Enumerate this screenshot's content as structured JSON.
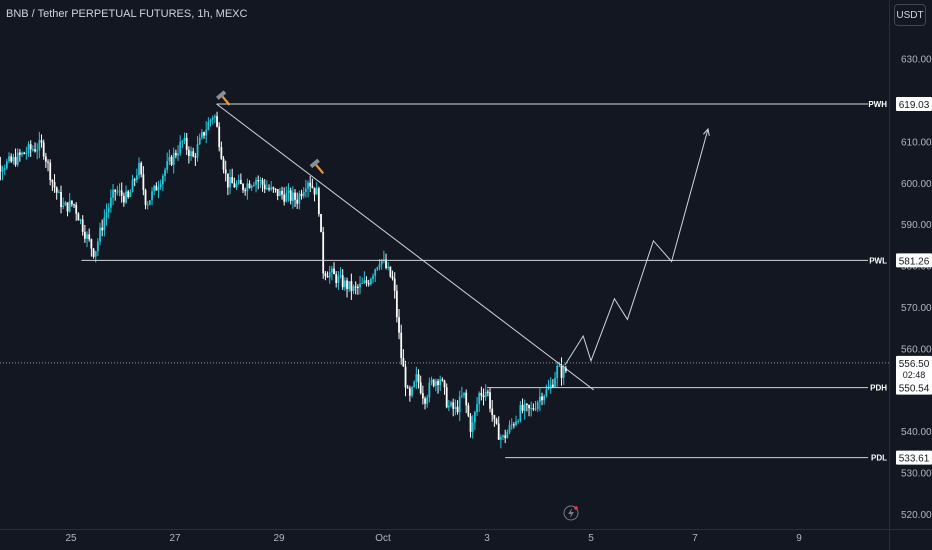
{
  "header": {
    "title": "BNB / Tether PERPETUAL FUTURES, 1h, MEXC",
    "currency_button": "USDT"
  },
  "colors": {
    "background": "#131722",
    "up": "#26c6da",
    "down": "#ffffff",
    "line": "#d1d4dc",
    "text": "#b2b5be",
    "hammer_head": "#8a8f9a",
    "hammer_handle": "#e69a3c"
  },
  "chart_data": {
    "type": "candlestick",
    "symbol": "BNB / Tether PERPETUAL FUTURES",
    "interval": "1h",
    "exchange": "MEXC",
    "ylim": [
      516,
      638
    ],
    "y_ticks": [
      520,
      530,
      540,
      550,
      560,
      570,
      580,
      590,
      600,
      610,
      620,
      630
    ],
    "y_tick_labels": [
      "520.00",
      "530.00",
      "540.00",
      "550.00",
      "560.00",
      "570.00",
      "580.00",
      "590.00",
      "600.00",
      "610.00",
      "620.00",
      "630.00"
    ],
    "x_day_range": [
      23.35,
      32.4
    ],
    "x_ticks": [
      {
        "day": 25,
        "label": "25"
      },
      {
        "day": 27,
        "label": "27"
      },
      {
        "day": 29,
        "label": "29"
      },
      {
        "day": 31,
        "label": "Oct"
      },
      {
        "day": 33,
        "label": "3"
      },
      {
        "day": 35,
        "label": "5"
      },
      {
        "day": 37,
        "label": "7"
      },
      {
        "day": 39,
        "label": "9"
      }
    ],
    "price_path": [
      [
        23.35,
        612
      ],
      [
        23.6,
        604
      ],
      [
        23.85,
        605
      ],
      [
        24.2,
        608
      ],
      [
        24.45,
        609
      ],
      [
        24.65,
        600
      ],
      [
        24.85,
        594
      ],
      [
        25.05,
        595
      ],
      [
        25.3,
        587
      ],
      [
        25.45,
        583
      ],
      [
        25.65,
        592
      ],
      [
        25.85,
        598
      ],
      [
        26.1,
        596
      ],
      [
        26.3,
        604
      ],
      [
        26.45,
        595
      ],
      [
        26.6,
        598
      ],
      [
        26.8,
        603
      ],
      [
        27.0,
        607
      ],
      [
        27.15,
        610
      ],
      [
        27.35,
        606
      ],
      [
        27.55,
        612
      ],
      [
        27.75,
        617
      ],
      [
        28.0,
        600
      ],
      [
        28.3,
        599
      ],
      [
        28.55,
        601
      ],
      [
        28.85,
        598
      ],
      [
        29.1,
        597
      ],
      [
        29.35,
        596
      ],
      [
        29.55,
        601
      ],
      [
        29.75,
        597
      ],
      [
        29.85,
        579
      ],
      [
        30.0,
        578
      ],
      [
        30.2,
        576
      ],
      [
        30.45,
        574
      ],
      [
        30.7,
        576
      ],
      [
        30.95,
        582
      ],
      [
        31.2,
        576
      ],
      [
        31.35,
        558
      ],
      [
        31.5,
        547
      ],
      [
        31.65,
        553
      ],
      [
        31.8,
        548
      ],
      [
        31.95,
        552
      ],
      [
        32.1,
        553
      ],
      [
        32.25,
        546
      ],
      [
        32.4,
        545
      ],
      [
        32.55,
        549
      ],
      [
        32.7,
        540
      ],
      [
        32.85,
        549
      ],
      [
        33.0,
        550
      ],
      [
        33.15,
        541
      ],
      [
        33.3,
        538
      ],
      [
        33.45,
        541
      ],
      [
        33.65,
        545
      ],
      [
        33.85,
        545
      ],
      [
        34.05,
        549
      ],
      [
        34.2,
        550
      ],
      [
        34.35,
        555
      ],
      [
        34.45,
        554
      ],
      [
        34.55,
        555
      ]
    ],
    "levels": [
      {
        "name": "PWH",
        "price": 619.03,
        "label": "619.03",
        "from_day": 27.8
      },
      {
        "name": "PWL",
        "price": 581.26,
        "label": "581.26",
        "from_day": 25.2
      },
      {
        "name": "PDH",
        "price": 550.54,
        "label": "550.54",
        "from_day": 33.0
      },
      {
        "name": "PDL",
        "price": 533.61,
        "label": "533.61",
        "from_day": 33.35
      }
    ],
    "last_price": {
      "price": 556.5,
      "label": "556.50",
      "countdown": "02:48"
    },
    "trendline": {
      "from": [
        27.8,
        619.03
      ],
      "to": [
        35.05,
        550.0
      ]
    },
    "projection_path": [
      [
        34.5,
        556
      ],
      [
        34.85,
        563
      ],
      [
        35.0,
        557
      ],
      [
        35.45,
        572
      ],
      [
        35.7,
        567
      ],
      [
        36.2,
        586
      ],
      [
        36.55,
        581
      ],
      [
        37.25,
        613
      ]
    ],
    "markers": [
      {
        "type": "hammer",
        "day": 27.9,
        "price": 621
      },
      {
        "type": "hammer",
        "day": 29.7,
        "price": 604.5
      }
    ]
  }
}
